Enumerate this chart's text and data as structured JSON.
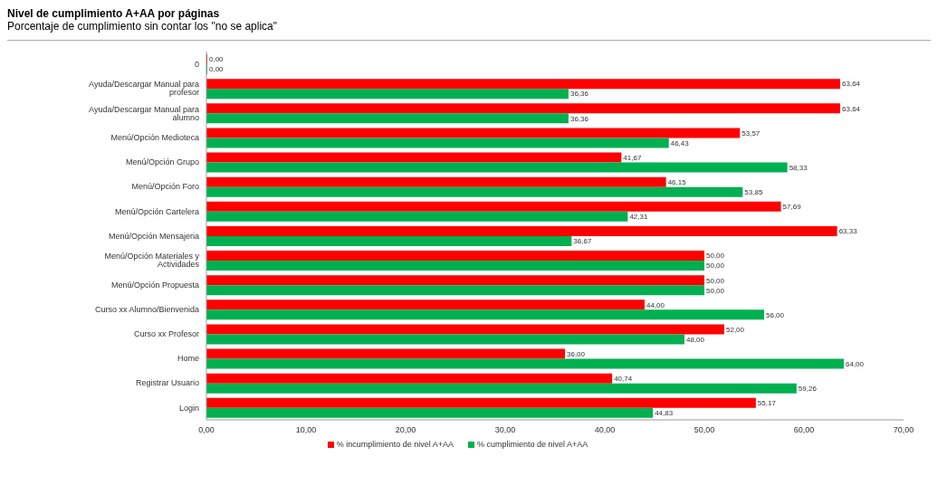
{
  "chart_data": {
    "type": "bar",
    "orientation": "horizontal",
    "title": "Nivel de cumplimiento A+AA por páginas",
    "subtitle": "Porcentaje de cumplimiento sin contar los \"no se aplica\"",
    "categories": [
      "0",
      "Ayuda/Descargar Manual para profesor",
      "Ayuda/Descargar Manual para alumno",
      "Menú/Opción Medioteca",
      "Menú/Opción Grupo",
      "Menú/Opción Foro",
      "Menú/Opción Cartelera",
      "Menú/Opción Mensajeria",
      "Menú/Opción Materiales y Actividades",
      "Menú/Opción Propuesta",
      "Curso xx Alumno/Bienvenida",
      "Curso xx Profesor",
      "Home",
      "Registrar Usuario",
      "Login"
    ],
    "series": [
      {
        "name": "% incumplimiento de nivel A+AA",
        "color": "#ff0000",
        "values": [
          0,
          63.64,
          63.64,
          53.57,
          41.67,
          46.15,
          57.69,
          63.33,
          50,
          50,
          44,
          52,
          36,
          40.74,
          55.17
        ],
        "value_labels": [
          "0,00",
          "63,64",
          "63,64",
          "53,57",
          "41,67",
          "46,15",
          "57,69",
          "63,33",
          "50,00",
          "50,00",
          "44,00",
          "52,00",
          "36,00",
          "40,74",
          "55,17"
        ]
      },
      {
        "name": "% cumplimiento de nivel A+AA",
        "color": "#00b050",
        "values": [
          0,
          36.36,
          36.36,
          46.43,
          58.33,
          53.85,
          42.31,
          36.67,
          50,
          50,
          56,
          48,
          64,
          59.26,
          44.83
        ],
        "value_labels": [
          "0,00",
          "36,36",
          "36,36",
          "46,43",
          "58,33",
          "53,85",
          "42,31",
          "36,67",
          "50,00",
          "50,00",
          "56,00",
          "48,00",
          "64,00",
          "59,26",
          "44,83"
        ]
      }
    ],
    "xlim": [
      0,
      70
    ],
    "xticks": [
      {
        "value": 0,
        "label": "0,00"
      },
      {
        "value": 10,
        "label": "10,00"
      },
      {
        "value": 20,
        "label": "20,00"
      },
      {
        "value": 30,
        "label": "30,00"
      },
      {
        "value": 40,
        "label": "40,00"
      },
      {
        "value": 50,
        "label": "50,00"
      },
      {
        "value": 60,
        "label": "60,00"
      },
      {
        "value": 70,
        "label": "70,00"
      }
    ],
    "legend": "bottom",
    "grid": false
  }
}
